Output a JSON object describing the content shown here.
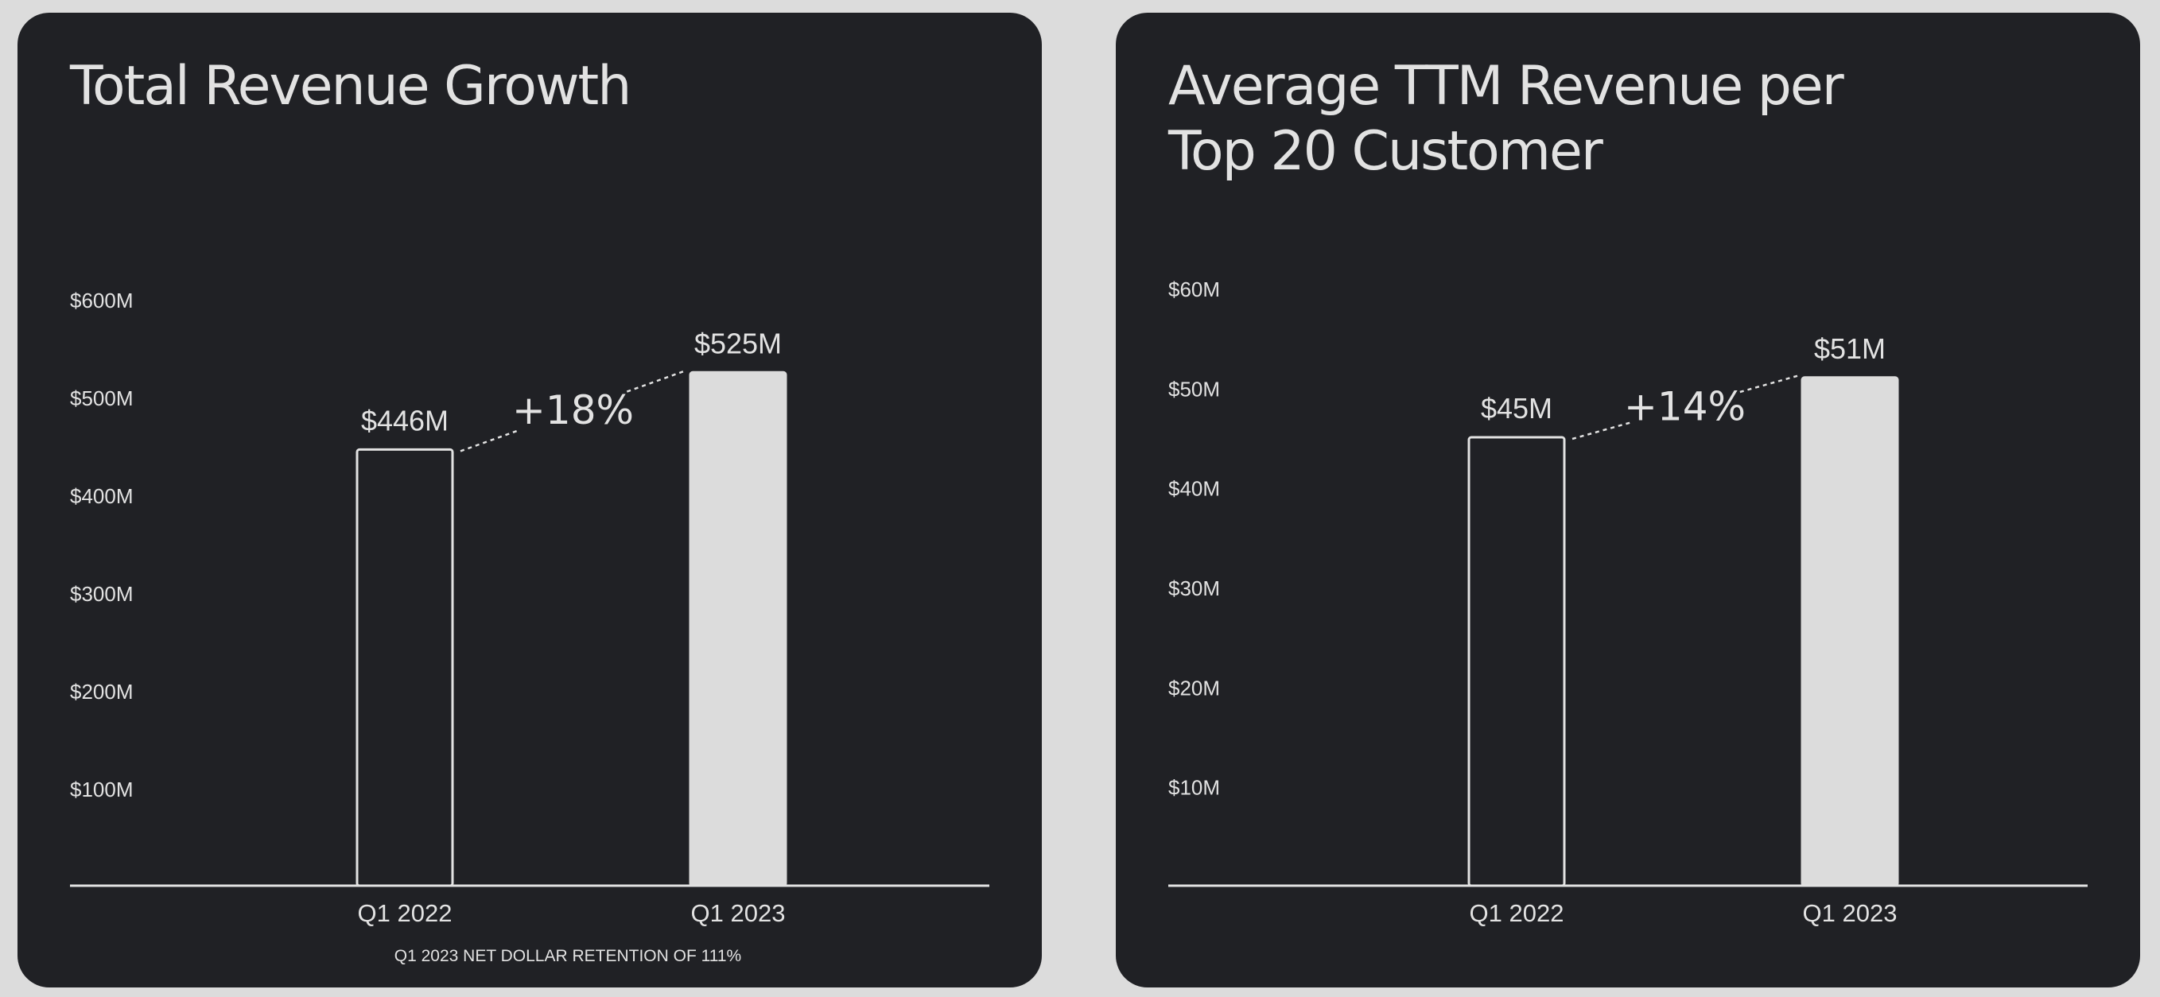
{
  "chart_data": [
    {
      "type": "bar",
      "title": "Total Revenue Growth",
      "categories": [
        "Q1 2022",
        "Q1 2023"
      ],
      "values": [
        446,
        525
      ],
      "value_labels": [
        "$446M",
        "$525M"
      ],
      "yticks": [
        100,
        200,
        300,
        400,
        500,
        600
      ],
      "ytick_labels": [
        "$100M",
        "$200M",
        "$300M",
        "$400M",
        "$500M",
        "$600M"
      ],
      "ylim": [
        0,
        600
      ],
      "growth_annotation": "+18%",
      "footnote": "Q1 2023 NET DOLLAR RETENTION OF 111%",
      "bar_styles": [
        "outline",
        "filled"
      ],
      "grid": false,
      "xlabel": "",
      "ylabel": ""
    },
    {
      "type": "bar",
      "title": [
        "Average TTM Revenue per",
        "Top 20 Customer"
      ],
      "categories": [
        "Q1 2022",
        "Q1 2023"
      ],
      "values": [
        45,
        51
      ],
      "value_labels": [
        "$45M",
        "$51M"
      ],
      "yticks": [
        10,
        20,
        30,
        40,
        50,
        60
      ],
      "ytick_labels": [
        "$10M",
        "$20M",
        "$30M",
        "$40M",
        "$50M",
        "$60M"
      ],
      "ylim": [
        0,
        60
      ],
      "growth_annotation": "+14%",
      "footnote": "",
      "bar_styles": [
        "outline",
        "filled"
      ],
      "grid": false,
      "xlabel": "",
      "ylabel": ""
    }
  ],
  "colors": {
    "page_background": "#dcdcdc",
    "card_background": "#202125",
    "foreground": "#e2e2e2",
    "filled_bar": "#dcdcdc"
  }
}
